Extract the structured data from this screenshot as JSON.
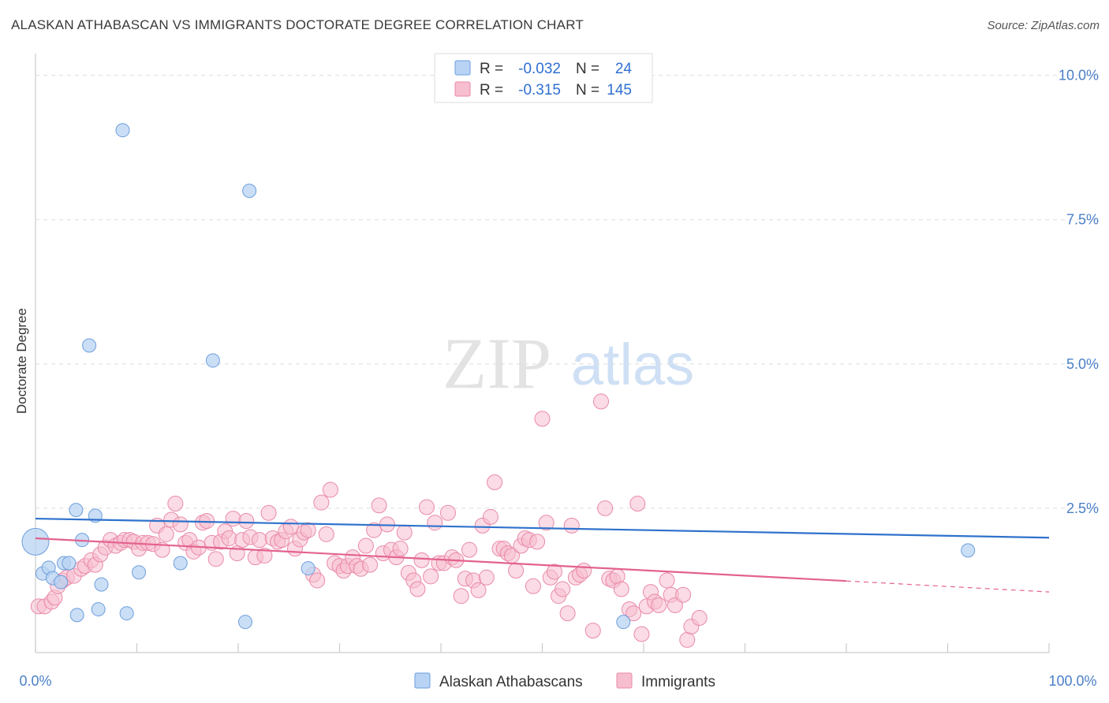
{
  "title": "ALASKAN ATHABASCAN VS IMMIGRANTS DOCTORATE DEGREE CORRELATION CHART",
  "source": "Source: ZipAtlas.com",
  "watermark": {
    "zip": "ZIP",
    "atlas": "atlas"
  },
  "colors": {
    "blue_fill": "#b8d3f3",
    "blue_stroke": "#6d9fdc",
    "blue_line": "#2f72cc",
    "pink_fill": "#f7bed0",
    "pink_stroke": "#e98aa8",
    "pink_line": "#e3628f",
    "axis_text": "#4a7fc8",
    "grid": "#dddddd"
  },
  "legend": {
    "rows": [
      {
        "r_label": "R =",
        "r_value": "-0.032",
        "n_label": "N =",
        "n_value": "24"
      },
      {
        "r_label": "R =",
        "r_value": "-0.315",
        "n_label": "N =",
        "n_value": "145"
      }
    ]
  },
  "bottom_legend": [
    "Alaskan Athabascans",
    "Immigrants"
  ],
  "chart_data": {
    "type": "scatter",
    "title": "ALASKAN ATHABASCAN VS IMMIGRANTS DOCTORATE DEGREE CORRELATION CHART",
    "xlabel": "",
    "ylabel": "Doctorate Degree",
    "xlim": [
      0,
      100
    ],
    "ylim": [
      0,
      10.5
    ],
    "x_tick_labels": [
      "0.0%",
      "100.0%"
    ],
    "y_ticks": [
      2.5,
      5.0,
      7.5,
      10.0
    ],
    "y_tick_labels": [
      "2.5%",
      "5.0%",
      "7.5%",
      "10.0%"
    ],
    "grid": true,
    "legend_position": "top-center",
    "series": [
      {
        "name": "Alaskan Athabascans",
        "r": -0.032,
        "n": 24,
        "trend": {
          "x": [
            0,
            100
          ],
          "y": [
            2.32,
            1.99
          ]
        },
        "points": [
          {
            "x": 0.0,
            "y": 1.92,
            "big": true
          },
          {
            "x": 8.6,
            "y": 9.05
          },
          {
            "x": 21.1,
            "y": 8.0
          },
          {
            "x": 5.3,
            "y": 5.32
          },
          {
            "x": 17.5,
            "y": 5.06
          },
          {
            "x": 4.0,
            "y": 2.47
          },
          {
            "x": 5.9,
            "y": 2.37
          },
          {
            "x": 4.6,
            "y": 1.95
          },
          {
            "x": 0.7,
            "y": 1.37
          },
          {
            "x": 1.3,
            "y": 1.47
          },
          {
            "x": 1.7,
            "y": 1.29
          },
          {
            "x": 2.5,
            "y": 1.22
          },
          {
            "x": 2.8,
            "y": 1.55
          },
          {
            "x": 3.3,
            "y": 1.55
          },
          {
            "x": 6.5,
            "y": 1.18
          },
          {
            "x": 10.2,
            "y": 1.39
          },
          {
            "x": 14.3,
            "y": 1.55
          },
          {
            "x": 26.9,
            "y": 1.46
          },
          {
            "x": 4.1,
            "y": 0.65
          },
          {
            "x": 6.2,
            "y": 0.75
          },
          {
            "x": 9.0,
            "y": 0.68
          },
          {
            "x": 20.7,
            "y": 0.53
          },
          {
            "x": 58.0,
            "y": 0.53
          },
          {
            "x": 92.0,
            "y": 1.77
          }
        ]
      },
      {
        "name": "Immigrants",
        "r": -0.315,
        "n": 145,
        "trend": {
          "x": [
            0,
            80
          ],
          "y": [
            1.98,
            1.24
          ]
        },
        "trend_dashed": {
          "x": [
            80,
            100
          ],
          "y": [
            1.24,
            1.05
          ]
        },
        "points": [
          {
            "x": 0.3,
            "y": 0.8
          },
          {
            "x": 0.9,
            "y": 0.8
          },
          {
            "x": 1.6,
            "y": 0.88
          },
          {
            "x": 1.9,
            "y": 0.95
          },
          {
            "x": 2.2,
            "y": 1.15
          },
          {
            "x": 2.7,
            "y": 1.25
          },
          {
            "x": 3.1,
            "y": 1.3
          },
          {
            "x": 3.8,
            "y": 1.33
          },
          {
            "x": 4.5,
            "y": 1.45
          },
          {
            "x": 4.9,
            "y": 1.5
          },
          {
            "x": 5.5,
            "y": 1.6
          },
          {
            "x": 5.9,
            "y": 1.52
          },
          {
            "x": 6.4,
            "y": 1.7
          },
          {
            "x": 6.9,
            "y": 1.82
          },
          {
            "x": 7.4,
            "y": 1.95
          },
          {
            "x": 7.9,
            "y": 1.85
          },
          {
            "x": 8.4,
            "y": 1.9
          },
          {
            "x": 8.8,
            "y": 1.95
          },
          {
            "x": 9.3,
            "y": 1.95
          },
          {
            "x": 9.7,
            "y": 1.92
          },
          {
            "x": 10.2,
            "y": 1.8
          },
          {
            "x": 10.6,
            "y": 1.9
          },
          {
            "x": 11.1,
            "y": 1.9
          },
          {
            "x": 11.6,
            "y": 1.88
          },
          {
            "x": 12.0,
            "y": 2.2
          },
          {
            "x": 12.5,
            "y": 1.78
          },
          {
            "x": 12.9,
            "y": 2.05
          },
          {
            "x": 13.4,
            "y": 2.3
          },
          {
            "x": 13.8,
            "y": 2.58
          },
          {
            "x": 14.3,
            "y": 2.22
          },
          {
            "x": 14.8,
            "y": 1.9
          },
          {
            "x": 15.2,
            "y": 1.95
          },
          {
            "x": 15.6,
            "y": 1.75
          },
          {
            "x": 16.1,
            "y": 1.82
          },
          {
            "x": 16.5,
            "y": 2.25
          },
          {
            "x": 16.9,
            "y": 2.28
          },
          {
            "x": 17.4,
            "y": 1.9
          },
          {
            "x": 17.8,
            "y": 1.62
          },
          {
            "x": 18.3,
            "y": 1.92
          },
          {
            "x": 18.7,
            "y": 2.1
          },
          {
            "x": 19.1,
            "y": 1.98
          },
          {
            "x": 19.5,
            "y": 2.32
          },
          {
            "x": 19.9,
            "y": 1.72
          },
          {
            "x": 20.4,
            "y": 1.95
          },
          {
            "x": 20.8,
            "y": 2.28
          },
          {
            "x": 21.2,
            "y": 2.0
          },
          {
            "x": 21.7,
            "y": 1.65
          },
          {
            "x": 22.1,
            "y": 1.95
          },
          {
            "x": 22.6,
            "y": 1.68
          },
          {
            "x": 23.0,
            "y": 2.42
          },
          {
            "x": 23.4,
            "y": 1.98
          },
          {
            "x": 23.9,
            "y": 1.92
          },
          {
            "x": 24.3,
            "y": 1.95
          },
          {
            "x": 24.7,
            "y": 2.1
          },
          {
            "x": 25.2,
            "y": 2.18
          },
          {
            "x": 25.6,
            "y": 1.8
          },
          {
            "x": 26.1,
            "y": 1.96
          },
          {
            "x": 26.5,
            "y": 2.08
          },
          {
            "x": 26.9,
            "y": 2.12
          },
          {
            "x": 27.4,
            "y": 1.35
          },
          {
            "x": 27.8,
            "y": 1.25
          },
          {
            "x": 28.2,
            "y": 2.6
          },
          {
            "x": 28.7,
            "y": 2.05
          },
          {
            "x": 29.1,
            "y": 2.82
          },
          {
            "x": 29.5,
            "y": 1.55
          },
          {
            "x": 30.0,
            "y": 1.5
          },
          {
            "x": 30.4,
            "y": 1.42
          },
          {
            "x": 30.8,
            "y": 1.5
          },
          {
            "x": 31.3,
            "y": 1.65
          },
          {
            "x": 31.7,
            "y": 1.5
          },
          {
            "x": 32.1,
            "y": 1.45
          },
          {
            "x": 32.6,
            "y": 1.85
          },
          {
            "x": 33.0,
            "y": 1.52
          },
          {
            "x": 33.4,
            "y": 2.12
          },
          {
            "x": 33.9,
            "y": 2.55
          },
          {
            "x": 34.3,
            "y": 1.72
          },
          {
            "x": 34.7,
            "y": 2.22
          },
          {
            "x": 35.1,
            "y": 1.78
          },
          {
            "x": 35.6,
            "y": 1.65
          },
          {
            "x": 36.0,
            "y": 1.8
          },
          {
            "x": 36.4,
            "y": 2.08
          },
          {
            "x": 36.8,
            "y": 1.38
          },
          {
            "x": 37.3,
            "y": 1.25
          },
          {
            "x": 37.7,
            "y": 1.1
          },
          {
            "x": 38.1,
            "y": 1.6
          },
          {
            "x": 38.6,
            "y": 2.52
          },
          {
            "x": 39.0,
            "y": 1.32
          },
          {
            "x": 39.4,
            "y": 2.25
          },
          {
            "x": 39.8,
            "y": 1.55
          },
          {
            "x": 40.3,
            "y": 1.55
          },
          {
            "x": 40.7,
            "y": 2.42
          },
          {
            "x": 41.1,
            "y": 1.65
          },
          {
            "x": 41.5,
            "y": 1.6
          },
          {
            "x": 42.0,
            "y": 0.98
          },
          {
            "x": 42.4,
            "y": 1.28
          },
          {
            "x": 42.8,
            "y": 1.78
          },
          {
            "x": 43.2,
            "y": 1.25
          },
          {
            "x": 43.7,
            "y": 1.08
          },
          {
            "x": 44.1,
            "y": 2.2
          },
          {
            "x": 44.5,
            "y": 1.3
          },
          {
            "x": 44.9,
            "y": 2.35
          },
          {
            "x": 45.3,
            "y": 2.95
          },
          {
            "x": 45.8,
            "y": 1.8
          },
          {
            "x": 46.2,
            "y": 1.8
          },
          {
            "x": 46.6,
            "y": 1.72
          },
          {
            "x": 47.0,
            "y": 1.68
          },
          {
            "x": 47.4,
            "y": 1.42
          },
          {
            "x": 47.9,
            "y": 1.85
          },
          {
            "x": 48.3,
            "y": 1.98
          },
          {
            "x": 48.7,
            "y": 1.95
          },
          {
            "x": 49.1,
            "y": 1.15
          },
          {
            "x": 49.5,
            "y": 1.92
          },
          {
            "x": 50.0,
            "y": 4.05
          },
          {
            "x": 50.4,
            "y": 2.25
          },
          {
            "x": 50.8,
            "y": 1.3
          },
          {
            "x": 51.2,
            "y": 1.4
          },
          {
            "x": 51.6,
            "y": 0.98
          },
          {
            "x": 52.0,
            "y": 1.1
          },
          {
            "x": 52.5,
            "y": 0.68
          },
          {
            "x": 52.9,
            "y": 2.2
          },
          {
            "x": 53.3,
            "y": 1.3
          },
          {
            "x": 53.7,
            "y": 1.35
          },
          {
            "x": 54.1,
            "y": 1.42
          },
          {
            "x": 55.0,
            "y": 0.38
          },
          {
            "x": 55.8,
            "y": 4.35
          },
          {
            "x": 56.2,
            "y": 2.5
          },
          {
            "x": 56.6,
            "y": 1.28
          },
          {
            "x": 57.0,
            "y": 1.25
          },
          {
            "x": 57.4,
            "y": 1.32
          },
          {
            "x": 57.8,
            "y": 1.1
          },
          {
            "x": 58.6,
            "y": 0.75
          },
          {
            "x": 59.0,
            "y": 0.68
          },
          {
            "x": 59.4,
            "y": 2.58
          },
          {
            "x": 59.8,
            "y": 0.32
          },
          {
            "x": 60.3,
            "y": 0.8
          },
          {
            "x": 60.7,
            "y": 1.05
          },
          {
            "x": 61.1,
            "y": 0.88
          },
          {
            "x": 61.5,
            "y": 0.82
          },
          {
            "x": 62.3,
            "y": 1.25
          },
          {
            "x": 62.7,
            "y": 1.0
          },
          {
            "x": 63.1,
            "y": 0.82
          },
          {
            "x": 63.9,
            "y": 1.0
          },
          {
            "x": 64.3,
            "y": 0.22
          },
          {
            "x": 64.7,
            "y": 0.45
          },
          {
            "x": 65.5,
            "y": 0.6
          }
        ]
      }
    ]
  }
}
